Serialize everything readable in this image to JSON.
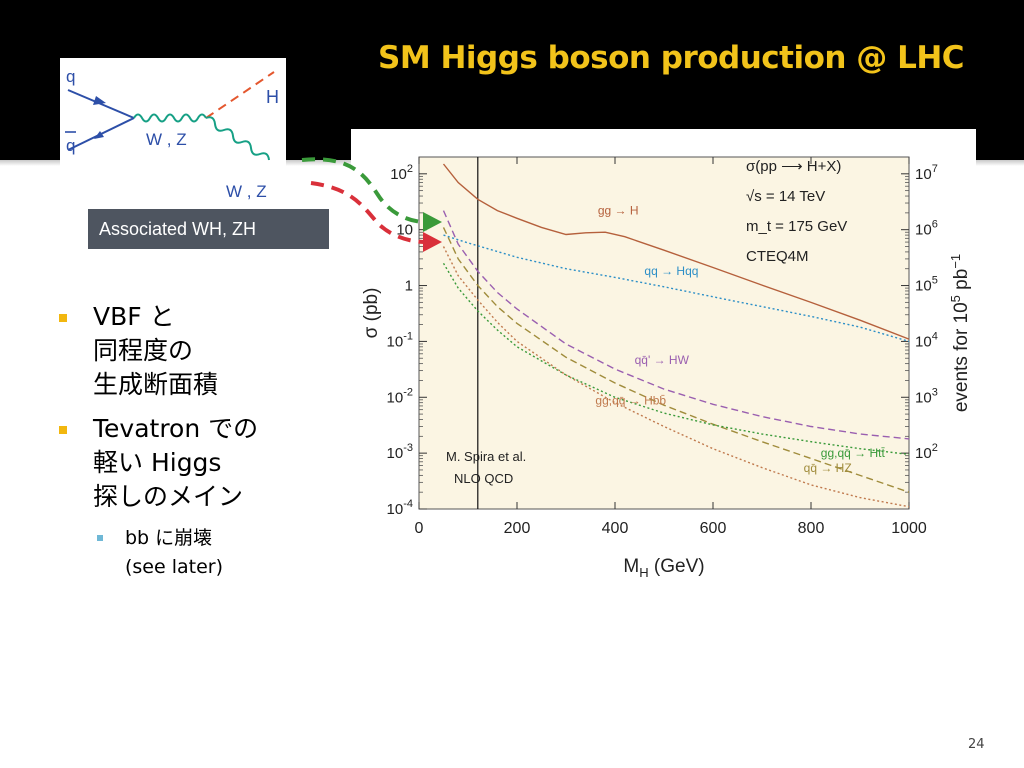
{
  "slide": {
    "title": "SM Higgs boson production @ LHC",
    "page_number": "24",
    "caption": "Associated WH, ZH"
  },
  "feynman": {
    "labels": {
      "q": "q",
      "qbar": "q",
      "wz_mid": "W , Z",
      "h": "H",
      "wz_out": "W , Z"
    }
  },
  "bullets": [
    {
      "lines": [
        "VBF と",
        "同程度の",
        "生成断面積"
      ]
    },
    {
      "lines": [
        "Tevatron での",
        "軽い Higgs",
        "探しのメイン"
      ]
    }
  ],
  "sub_bullet": {
    "lines": [
      "bb に崩壊",
      "(see later)"
    ]
  },
  "colors": {
    "title": "#f2c31a",
    "plot_background": "#fbf5e3",
    "arrow_green": "#3a9a3a",
    "arrow_red": "#d9303a",
    "bullet_marker": "#f2b70f",
    "sub_bullet_marker": "#6fb8d6"
  },
  "chart_data": {
    "type": "line",
    "xlabel": "M_H (GeV)",
    "ylabel": "σ (pb)",
    "ylabel_right": "events for 10^5 pb^-1",
    "xlim": [
      0,
      1000
    ],
    "ylim": [
      0.0001,
      200
    ],
    "log_y": true,
    "x_ticks": [
      "0",
      "200",
      "400",
      "600",
      "800",
      "1000"
    ],
    "y_ticks": [
      {
        "base": "10",
        "exp": "2",
        "value": 100
      },
      {
        "base": "10",
        "exp": "",
        "value": 10
      },
      {
        "base": "1",
        "exp": "",
        "value": 1
      },
      {
        "base": "10",
        "exp": "-1",
        "value": 0.1
      },
      {
        "base": "10",
        "exp": "-2",
        "value": 0.01
      },
      {
        "base": "10",
        "exp": "-3",
        "value": 0.001
      },
      {
        "base": "10",
        "exp": "-4",
        "value": 0.0001
      }
    ],
    "y2_ticks": [
      {
        "base": "10",
        "exp": "7",
        "value": 100
      },
      {
        "base": "10",
        "exp": "6",
        "value": 10
      },
      {
        "base": "10",
        "exp": "5",
        "value": 1
      },
      {
        "base": "10",
        "exp": "4",
        "value": 0.1
      },
      {
        "base": "10",
        "exp": "3",
        "value": 0.01
      },
      {
        "base": "10",
        "exp": "2",
        "value": 0.001
      }
    ],
    "vline_x": 120,
    "annotations_top": [
      "σ(pp ⟶ H+X)",
      "√s = 14 TeV",
      "m_t = 175 GeV",
      "CTEQ4M"
    ],
    "annotations_bottom": [
      "M. Spira et al.",
      "NLO  QCD"
    ],
    "series": [
      {
        "name": "gg → H",
        "color": "#b5603c",
        "dash": "solid",
        "x": [
          50,
          80,
          120,
          160,
          200,
          250,
          300,
          340,
          380,
          420,
          500,
          600,
          700,
          800,
          900,
          1000
        ],
        "y": [
          150,
          70,
          35,
          22,
          16,
          11,
          8.2,
          8.8,
          9.0,
          7.5,
          4.3,
          2.1,
          1.02,
          0.5,
          0.24,
          0.11
        ]
      },
      {
        "name": "qq → Hqq",
        "color": "#2c8fc7",
        "dash": "dotted",
        "x": [
          50,
          100,
          200,
          300,
          400,
          500,
          600,
          700,
          800,
          900,
          1000
        ],
        "y": [
          8.0,
          5.8,
          3.2,
          2.0,
          1.4,
          0.95,
          0.63,
          0.42,
          0.28,
          0.18,
          0.1
        ]
      },
      {
        "name": "qq̄' → HW",
        "color": "#9a5fb0",
        "dash": "dashed",
        "x": [
          50,
          80,
          120,
          160,
          200,
          300,
          400,
          500,
          600,
          700,
          800,
          900,
          1000
        ],
        "y": [
          22,
          5.5,
          1.8,
          0.75,
          0.38,
          0.09,
          0.032,
          0.014,
          0.0075,
          0.0045,
          0.003,
          0.0022,
          0.0018
        ]
      },
      {
        "name": "qq̄ → HZ",
        "color": "#a08c3c",
        "dash": "dashed",
        "x": [
          50,
          80,
          120,
          160,
          200,
          300,
          400,
          500,
          600,
          700,
          800,
          900,
          1000
        ],
        "y": [
          11,
          3.0,
          1.0,
          0.42,
          0.21,
          0.052,
          0.018,
          0.0072,
          0.0033,
          0.0016,
          0.0008,
          0.0004,
          0.0002
        ]
      },
      {
        "name": "gg,qq̄ → Htt̄",
        "color": "#3a9a3a",
        "dash": "dotted",
        "x": [
          50,
          80,
          120,
          160,
          200,
          300,
          400,
          500,
          600,
          700,
          800,
          900,
          1000
        ],
        "y": [
          2.5,
          0.9,
          0.35,
          0.16,
          0.08,
          0.025,
          0.01,
          0.0052,
          0.0032,
          0.0022,
          0.0016,
          0.0012,
          0.00095
        ]
      },
      {
        "name": "gg,qq̄ → Hbb̄",
        "color": "#c07a4e",
        "dash": "dotted",
        "x": [
          50,
          80,
          120,
          160,
          200,
          300,
          400,
          500,
          600,
          700,
          800,
          900,
          1000
        ],
        "y": [
          5.0,
          1.5,
          0.55,
          0.22,
          0.1,
          0.025,
          0.008,
          0.003,
          0.0012,
          0.00055,
          0.00027,
          0.00016,
          0.00011
        ]
      }
    ],
    "series_labels": [
      {
        "text": "gg → H",
        "series": 0
      },
      {
        "text": "qq → Hqq",
        "series": 1
      },
      {
        "text": "qq̄' → HW",
        "series": 2
      },
      {
        "text": "qq̄ → HZ",
        "series": 3
      },
      {
        "text": "gg,qq̄ → Htt̄",
        "series": 4
      },
      {
        "text": "gg,qq̄ → Hbb̄",
        "series": 5
      }
    ],
    "grid": false
  }
}
